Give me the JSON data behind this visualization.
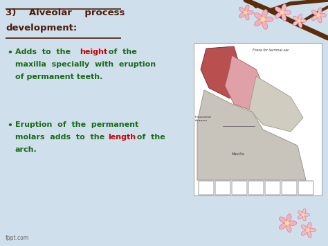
{
  "bg_color": "#cfe0ec",
  "title_line1": "3)    Alveolar    process",
  "title_line2": "development:",
  "title_color": "#4b1c0a",
  "title_fontsize": 9.5,
  "bullet_green": "#1a6b1a",
  "bullet_red": "#cc0000",
  "bullet_fontsize": 8.0,
  "footer_text": "fppt.com",
  "footer_color": "#666666",
  "footer_fontsize": 5.5,
  "branch_color": "#5c2d0a",
  "flower_color": "#f5b0c0"
}
